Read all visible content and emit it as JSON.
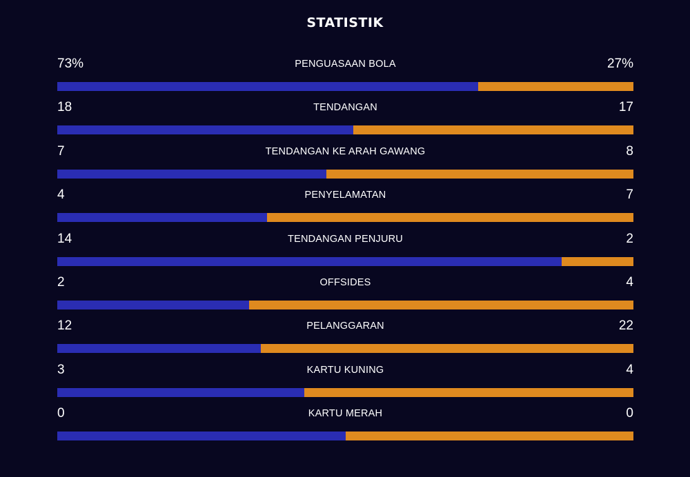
{
  "title": "STATISTIK",
  "colors": {
    "background": "#080720",
    "home_bar": "#2a2db3",
    "away_bar": "#df8a1f",
    "text": "#ffffff"
  },
  "stats": [
    {
      "label": "PENGUASAAN BOLA",
      "home": "73%",
      "away": "27%",
      "home_share": 0.73
    },
    {
      "label": "TENDANGAN",
      "home": "18",
      "away": "17",
      "home_share": 0.514
    },
    {
      "label": "TENDANGAN KE ARAH GAWANG",
      "home": "7",
      "away": "8",
      "home_share": 0.467
    },
    {
      "label": "PENYELAMATAN",
      "home": "4",
      "away": "7",
      "home_share": 0.364
    },
    {
      "label": "TENDANGAN PENJURU",
      "home": "14",
      "away": "2",
      "home_share": 0.875
    },
    {
      "label": "OFFSIDES",
      "home": "2",
      "away": "4",
      "home_share": 0.333
    },
    {
      "label": "PELANGGARAN",
      "home": "12",
      "away": "22",
      "home_share": 0.353
    },
    {
      "label": "KARTU KUNING",
      "home": "3",
      "away": "4",
      "home_share": 0.429
    },
    {
      "label": "KARTU MERAH",
      "home": "0",
      "away": "0",
      "home_share": 0.5
    }
  ]
}
